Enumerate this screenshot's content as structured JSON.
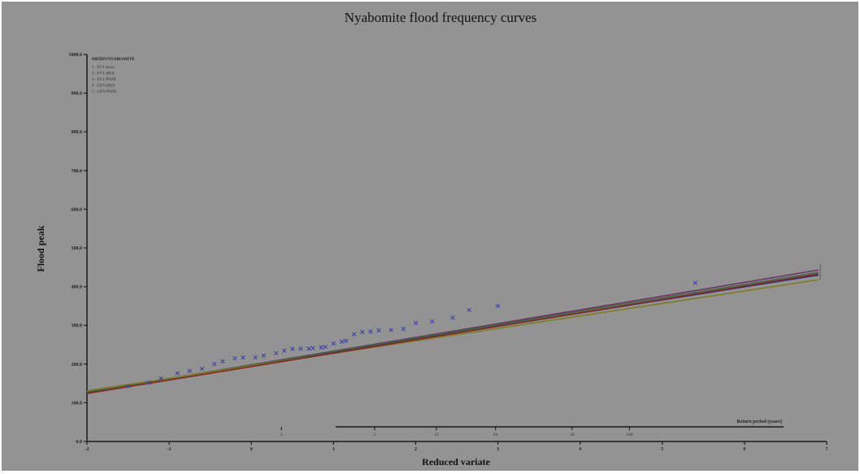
{
  "chart_data": {
    "type": "scatter",
    "title": "Nyabomite flood frequency curves",
    "xlabel": "Reduced variate",
    "ylabel": "Flood peak",
    "xlim": [
      -2,
      7
    ],
    "ylim": [
      0,
      1000
    ],
    "x_ticks": [
      "-2",
      "-1",
      "0",
      "1",
      "2",
      "3",
      "4",
      "5",
      "6",
      "7"
    ],
    "y_ticks": [
      "0.0",
      "100.0",
      "200.0",
      "300.0",
      "400.0",
      "500.0",
      "600.0",
      "700.0",
      "800.0",
      "900.0",
      "1000.0"
    ],
    "legend": {
      "position": "top-left",
      "title": "MEDIVNYABOMITE",
      "entries": [
        "1 - EV1-mom",
        "2 - EV1-MLE",
        "3 - EV1-PWM",
        "4 - GEV-MLE",
        "5 - GEV-PWM"
      ]
    },
    "curve_end_labels": [
      "1",
      "2",
      "3",
      "4",
      "5"
    ],
    "series": [
      {
        "name": "1 - EV1-mom",
        "color": "#6c2f6c",
        "x": [
          -2,
          6.9
        ],
        "y": [
          127,
          443
        ]
      },
      {
        "name": "2 - EV1-MLE",
        "color": "#2e2f7e",
        "x": [
          -2,
          6.9
        ],
        "y": [
          129,
          430
        ]
      },
      {
        "name": "3 - EV1-PWM",
        "color": "#3b6a3b",
        "x": [
          -2,
          6.9
        ],
        "y": [
          128,
          437
        ]
      },
      {
        "name": "4 - GEV-MLE",
        "color": "#7d7d1e",
        "x": [
          -2,
          6.9
        ],
        "y": [
          131,
          418
        ]
      },
      {
        "name": "5 - GEV-PWM",
        "color": "#8a2424",
        "x": [
          -2,
          6.9
        ],
        "y": [
          124,
          433
        ]
      }
    ],
    "observations": {
      "marker": "x",
      "color": "#3f3fa8",
      "x": [
        -1.5,
        -1.25,
        -1.1,
        -0.9,
        -0.75,
        -0.6,
        -0.45,
        -0.35,
        -0.2,
        -0.1,
        0.05,
        0.15,
        0.3,
        0.4,
        0.5,
        0.6,
        0.7,
        0.75,
        0.85,
        0.9,
        1.0,
        1.1,
        1.15,
        1.25,
        1.35,
        1.45,
        1.55,
        1.7,
        1.85,
        2.0,
        2.2,
        2.45,
        2.65,
        3.0,
        5.4
      ],
      "y": [
        143,
        152,
        163,
        176,
        182,
        188,
        200,
        207,
        215,
        217,
        217,
        222,
        228,
        235,
        239,
        240,
        240,
        241,
        243,
        244,
        253,
        258,
        260,
        277,
        283,
        284,
        287,
        288,
        291,
        306,
        310,
        320,
        340,
        350,
        410
      ]
    },
    "return_period_axis": {
      "label": "Return period (years)",
      "ticks": [
        "2",
        "5",
        "10",
        "20",
        "50",
        "100"
      ]
    }
  }
}
